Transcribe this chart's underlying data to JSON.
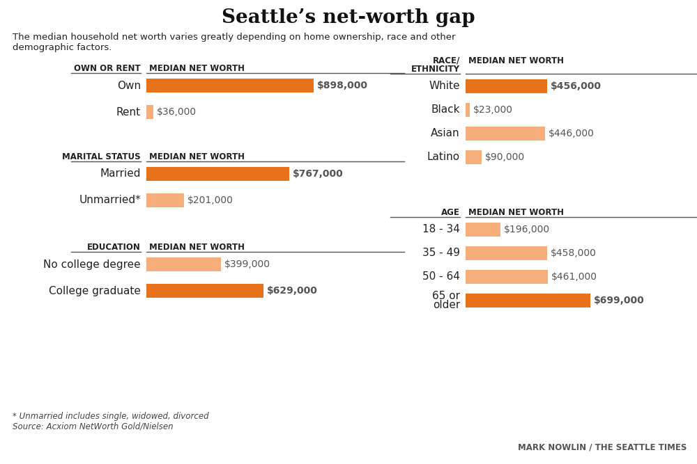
{
  "title": "Seattle’s net-worth gap",
  "subtitle": "The median household net worth varies greatly depending on home ownership, race and other\ndemographic factors.",
  "footnote1": "* Unmarried includes single, widowed, divorced",
  "footnote2": "Source: Acxiom NetWorth Gold/Nielsen",
  "credit": "MARK NOWLIN / THE SEATTLE TIMES",
  "bg_color": "#ffffff",
  "dark_orange": "#E8721C",
  "light_orange": "#F5AD7A",
  "max_value": 898000,
  "left_sections": [
    {
      "header_cat": "OWN OR RENT",
      "header_val": "MEDIAN NET WORTH",
      "bars": [
        {
          "label": "Own",
          "value": 898000,
          "color": "#E8721C"
        },
        {
          "label": "Rent",
          "value": 36000,
          "color": "#F5AD7A"
        }
      ]
    },
    {
      "header_cat": "MARITAL STATUS",
      "header_val": "MEDIAN NET WORTH",
      "bars": [
        {
          "label": "Married",
          "value": 767000,
          "color": "#E8721C"
        },
        {
          "label": "Unmarried*",
          "value": 201000,
          "color": "#F5AD7A"
        }
      ]
    },
    {
      "header_cat": "EDUCATION",
      "header_val": "MEDIAN NET WORTH",
      "bars": [
        {
          "label": "No college degree",
          "value": 399000,
          "color": "#F5AD7A"
        },
        {
          "label": "College graduate",
          "value": 629000,
          "color": "#E8721C"
        }
      ]
    }
  ],
  "right_sections": [
    {
      "header_cat": "RACE/\nETHNICITY",
      "header_val": "MEDIAN NET WORTH",
      "bars": [
        {
          "label": "White",
          "value": 456000,
          "color": "#E8721C"
        },
        {
          "label": "Black",
          "value": 23000,
          "color": "#F5AD7A"
        },
        {
          "label": "Asian",
          "value": 446000,
          "color": "#F5AD7A"
        },
        {
          "label": "Latino",
          "value": 90000,
          "color": "#F5AD7A"
        }
      ]
    },
    {
      "header_cat": "AGE",
      "header_val": "MEDIAN NET WORTH",
      "bars": [
        {
          "label": "18 - 34",
          "value": 196000,
          "color": "#F5AD7A"
        },
        {
          "label": "35 - 49",
          "value": 458000,
          "color": "#F5AD7A"
        },
        {
          "label": "50 - 64",
          "value": 461000,
          "color": "#F5AD7A"
        },
        {
          "label": "65 or\nolder",
          "value": 699000,
          "color": "#E8721C"
        }
      ]
    }
  ]
}
